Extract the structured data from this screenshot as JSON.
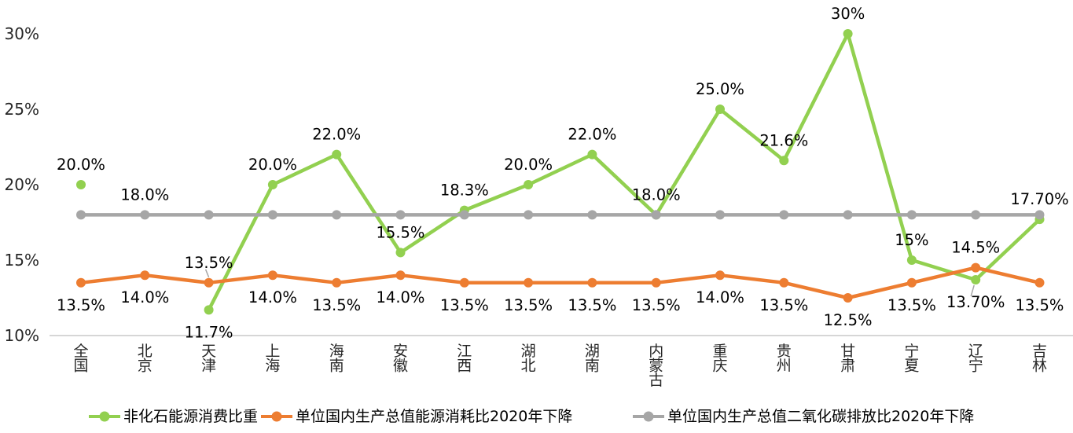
{
  "chart_data": {
    "type": "line",
    "categories": [
      "全国",
      "北京",
      "天津",
      "上海",
      "海南",
      "安徽",
      "江西",
      "湖北",
      "湖南",
      "内蒙古",
      "重庆",
      "贵州",
      "甘肃",
      "宁夏",
      "辽宁",
      "吉林"
    ],
    "y_axis": {
      "tick_labels": [
        "30%",
        "25%",
        "20%",
        "15%",
        "10%"
      ],
      "tick_values": [
        30,
        25,
        20,
        15,
        10
      ],
      "min": 10,
      "max": 30,
      "unit": "%"
    },
    "grid": "baseline-only",
    "legend_position": "bottom",
    "series": [
      {
        "key": "non-fossil-energy-share",
        "name": "非化石能源消费比重",
        "color": "#92D050",
        "values": [
          20.0,
          null,
          11.7,
          20.0,
          22.0,
          15.5,
          18.3,
          20.0,
          22.0,
          18.0,
          25.0,
          21.6,
          30.0,
          15.0,
          13.7,
          17.7
        ],
        "labels": [
          "20.0%",
          "",
          "11.7%",
          "20.0%",
          "22.0%",
          "15.5%",
          "18.3%",
          "20.0%",
          "22.0%",
          "18.0%",
          "25.0%",
          "21.6%",
          "30%",
          "15%",
          "13.70%",
          "17.70%"
        ],
        "label_positions": [
          "above",
          null,
          "below",
          "above",
          "above",
          "above",
          "above",
          "above",
          "above",
          "above",
          "above",
          "above",
          "above",
          "above",
          "below-leader",
          "above"
        ]
      },
      {
        "key": "energy-intensity-reduction",
        "name": "单位国内生产总值能源消耗比2020年下降",
        "color": "#ED7D31",
        "values": [
          13.5,
          14.0,
          13.5,
          14.0,
          13.5,
          14.0,
          13.5,
          13.5,
          13.5,
          13.5,
          14.0,
          13.5,
          12.5,
          13.5,
          14.5,
          13.5
        ],
        "labels": [
          "13.5%",
          "14.0%",
          "13.5%",
          "14.0%",
          "13.5%",
          "14.0%",
          "13.5%",
          "13.5%",
          "13.5%",
          "13.5%",
          "14.0%",
          "13.5%",
          "12.5%",
          "13.5%",
          "14.5%",
          "13.5%"
        ],
        "label_positions": [
          "below",
          "below",
          "above-leader",
          "below",
          "below",
          "below",
          "below",
          "below",
          "below",
          "below",
          "below",
          "below",
          "below",
          "below",
          "above",
          "below"
        ]
      },
      {
        "key": "co2-intensity-reduction",
        "name": "单位国内生产总值二氧化碳排放比2020年下降",
        "color": "#A6A6A6",
        "values": [
          18,
          18,
          18,
          18,
          18,
          18,
          18,
          18,
          18,
          18,
          18,
          18,
          18,
          18,
          18,
          18
        ],
        "labels": [
          "",
          "18.0%",
          "",
          "",
          "",
          "",
          "",
          "",
          "",
          "",
          "",
          "",
          "",
          "",
          "",
          ""
        ],
        "label_positions": [
          null,
          "above",
          null,
          null,
          null,
          null,
          null,
          null,
          null,
          null,
          null,
          null,
          null,
          null,
          null,
          null
        ]
      }
    ]
  }
}
